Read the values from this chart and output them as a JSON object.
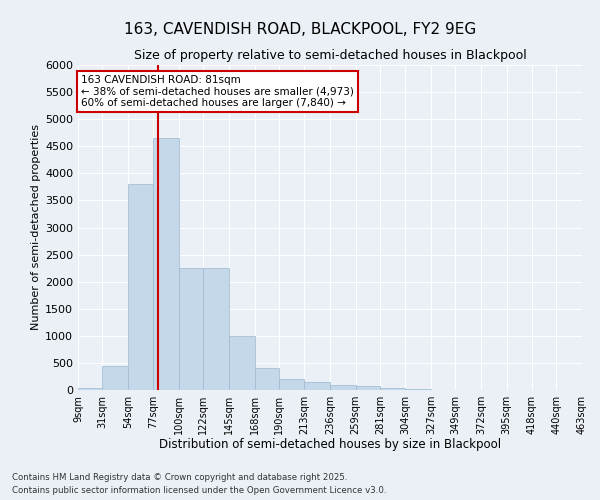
{
  "title1": "163, CAVENDISH ROAD, BLACKPOOL, FY2 9EG",
  "title2": "Size of property relative to semi-detached houses in Blackpool",
  "xlabel": "Distribution of semi-detached houses by size in Blackpool",
  "ylabel": "Number of semi-detached properties",
  "property_size": 81,
  "property_label": "163 CAVENDISH ROAD: 81sqm",
  "smaller_pct": 38,
  "smaller_count": 4973,
  "larger_pct": 60,
  "larger_count": 7840,
  "bar_color": "#c5d8ea",
  "bar_edge_color": "#9ab8d0",
  "vline_color": "#cc0000",
  "background_color": "#eaf0f6",
  "plot_background": "#eaf0f6",
  "grid_color": "#ffffff",
  "footnote1": "Contains HM Land Registry data © Crown copyright and database right 2025.",
  "footnote2": "Contains public sector information licensed under the Open Government Licence v3.0.",
  "bins": [
    9,
    31,
    54,
    77,
    100,
    122,
    145,
    168,
    190,
    213,
    236,
    259,
    281,
    304,
    327,
    349,
    372,
    395,
    418,
    440,
    463
  ],
  "bin_labels": [
    "9sqm",
    "31sqm",
    "54sqm",
    "77sqm",
    "100sqm",
    "122sqm",
    "145sqm",
    "168sqm",
    "190sqm",
    "213sqm",
    "236sqm",
    "259sqm",
    "281sqm",
    "304sqm",
    "327sqm",
    "349sqm",
    "372sqm",
    "395sqm",
    "418sqm",
    "440sqm",
    "463sqm"
  ],
  "counts": [
    30,
    450,
    3800,
    4650,
    2250,
    2250,
    1000,
    400,
    200,
    150,
    100,
    70,
    30,
    10,
    5,
    3,
    2,
    1,
    1,
    1
  ],
  "ylim": [
    0,
    6000
  ],
  "yticks": [
    0,
    500,
    1000,
    1500,
    2000,
    2500,
    3000,
    3500,
    4000,
    4500,
    5000,
    5500,
    6000
  ]
}
